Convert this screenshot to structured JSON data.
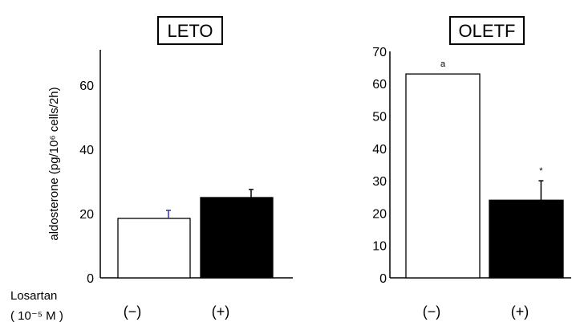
{
  "chart_data": [
    {
      "type": "bar",
      "title": "LETO",
      "ylabel": "aldosterone (pg/10⁶ cells/2h)",
      "ylim": [
        0,
        70
      ],
      "yticks": [
        "0",
        "20",
        "40",
        "60"
      ],
      "categories": [
        "(−)",
        "(+)"
      ],
      "values": [
        18.5,
        25
      ],
      "errors": [
        2.5,
        2.5
      ],
      "bar_colors": [
        "#ffffff",
        "#000000"
      ],
      "error_colors": [
        "#3333aa",
        "#000000"
      ],
      "annotations": [
        "",
        ""
      ]
    },
    {
      "type": "bar",
      "title": "OLETF",
      "ylabel": "",
      "ylim": [
        0,
        70
      ],
      "yticks": [
        "0",
        "10",
        "20",
        "30",
        "40",
        "50",
        "60",
        "70"
      ],
      "categories": [
        "(−)",
        "(+)"
      ],
      "values": [
        63,
        24
      ],
      "errors": [
        0,
        6
      ],
      "bar_colors": [
        "#ffffff",
        "#000000"
      ],
      "error_colors": [
        "#000000",
        "#000000"
      ],
      "annotations": [
        "a",
        "*"
      ]
    }
  ],
  "row_labels": {
    "losartan": "Losartan",
    "dose": "( 10⁻⁵ M )"
  }
}
